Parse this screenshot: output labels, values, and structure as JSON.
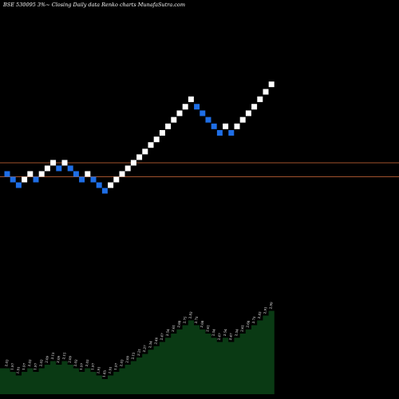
{
  "chart_data": {
    "type": "renko",
    "title": "BSE 530095 3%~   Closing Daily data  Renko  charts MunafaSutra.com",
    "renko": {
      "up_color": "#ffffff",
      "down_color": "#1e6ee6",
      "bricks": [
        {
          "d": "down",
          "v": 2.03
        },
        {
          "d": "down",
          "v": 1.97
        },
        {
          "d": "down",
          "v": 1.91
        },
        {
          "d": "up",
          "v": 1.97
        },
        {
          "d": "up",
          "v": 2.03
        },
        {
          "d": "down",
          "v": 1.97
        },
        {
          "d": "up",
          "v": 2.03
        },
        {
          "d": "up",
          "v": 2.09
        },
        {
          "d": "up",
          "v": 2.15
        },
        {
          "d": "down",
          "v": 2.09
        },
        {
          "d": "up",
          "v": 2.15
        },
        {
          "d": "down",
          "v": 2.09
        },
        {
          "d": "down",
          "v": 2.03
        },
        {
          "d": "down",
          "v": 1.97
        },
        {
          "d": "up",
          "v": 2.03
        },
        {
          "d": "down",
          "v": 1.97
        },
        {
          "d": "down",
          "v": 1.91
        },
        {
          "d": "down",
          "v": 1.85
        },
        {
          "d": "up",
          "v": 1.91
        },
        {
          "d": "up",
          "v": 1.97
        },
        {
          "d": "up",
          "v": 2.03
        },
        {
          "d": "up",
          "v": 2.09
        },
        {
          "d": "up",
          "v": 2.15
        },
        {
          "d": "up",
          "v": 2.21
        },
        {
          "d": "up",
          "v": 2.27
        },
        {
          "d": "up",
          "v": 2.34
        },
        {
          "d": "up",
          "v": 2.4
        },
        {
          "d": "up",
          "v": 2.47
        },
        {
          "d": "up",
          "v": 2.54
        },
        {
          "d": "up",
          "v": 2.61
        },
        {
          "d": "up",
          "v": 2.68
        },
        {
          "d": "up",
          "v": 2.75
        },
        {
          "d": "up",
          "v": 2.83
        },
        {
          "d": "down",
          "v": 2.75
        },
        {
          "d": "down",
          "v": 2.68
        },
        {
          "d": "down",
          "v": 2.61
        },
        {
          "d": "down",
          "v": 2.54
        },
        {
          "d": "down",
          "v": 2.47
        },
        {
          "d": "up",
          "v": 2.54
        },
        {
          "d": "down",
          "v": 2.47
        },
        {
          "d": "up",
          "v": 2.54
        },
        {
          "d": "up",
          "v": 2.61
        },
        {
          "d": "up",
          "v": 2.68
        },
        {
          "d": "up",
          "v": 2.75
        },
        {
          "d": "up",
          "v": 2.83
        },
        {
          "d": "up",
          "v": 2.91
        },
        {
          "d": "up",
          "v": 2.99
        }
      ]
    },
    "reference_lines": [
      {
        "value": 2.15,
        "color": "#a0522d"
      },
      {
        "value": 2.0,
        "color": "#a0522d"
      }
    ],
    "volume": {
      "fill": "#0a3a14",
      "labels": [
        "2.03",
        "1.97",
        "1.91",
        "1.97",
        "2.03",
        "1.97",
        "2.03",
        "2.09",
        "2.15",
        "2.09",
        "2.15",
        "2.09",
        "2.03",
        "1.97",
        "2.03",
        "1.97",
        "1.91",
        "1.85",
        "1.91",
        "1.97",
        "2.03",
        "2.09",
        "2.15",
        "2.21",
        "2.27",
        "2.34",
        "2.40",
        "2.47",
        "2.54",
        "2.61",
        "2.68",
        "2.75",
        "2.83",
        "2.75",
        "2.68",
        "2.61",
        "2.54",
        "2.47",
        "2.54",
        "2.47",
        "2.54",
        "2.61",
        "2.68",
        "2.75",
        "2.83",
        "2.91",
        "2.99"
      ]
    }
  }
}
